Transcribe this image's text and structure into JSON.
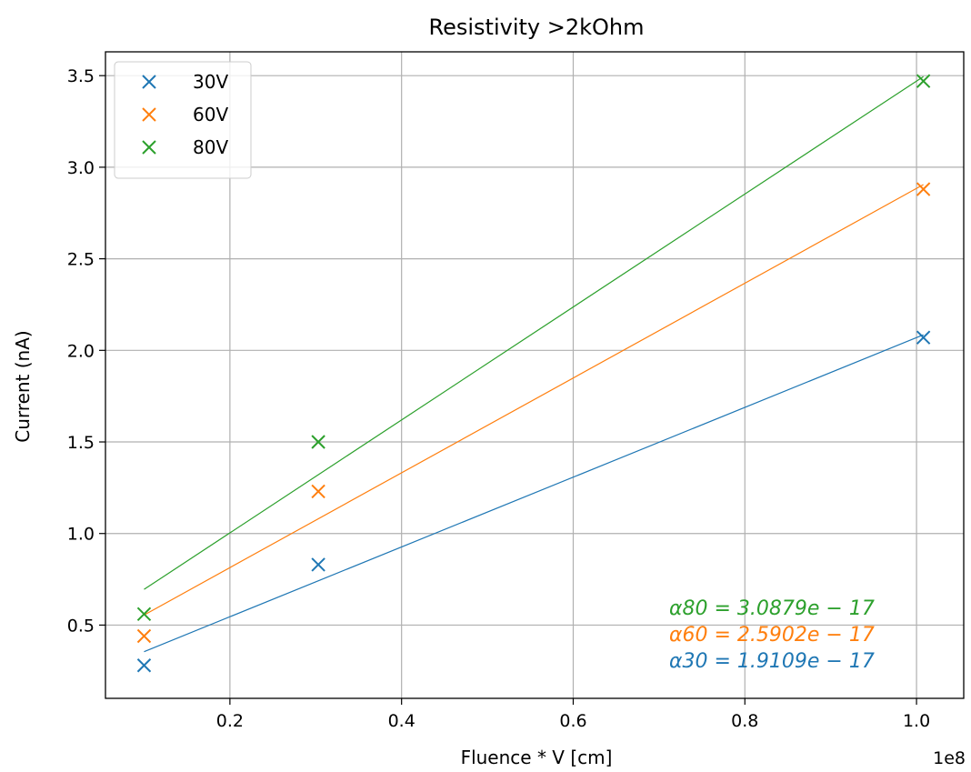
{
  "chart_data": {
    "type": "scatter",
    "title": "Resistivity >2kOhm",
    "xlabel": "Fluence * V [cm]",
    "ylabel": "Current (nA)",
    "x_offset_label": "1e8",
    "x_scale_factor": 100000000,
    "xlim": [
      0.055,
      1.055
    ],
    "ylim": [
      0.1,
      3.63
    ],
    "xticks": [
      0.2,
      0.4,
      0.6,
      0.8,
      1.0
    ],
    "xtick_labels": [
      "0.2",
      "0.4",
      "0.6",
      "0.8",
      "1.0"
    ],
    "yticks": [
      0.5,
      1.0,
      1.5,
      2.0,
      2.5,
      3.0,
      3.5
    ],
    "ytick_labels": [
      "0.5",
      "1.0",
      "1.5",
      "2.0",
      "2.5",
      "3.0",
      "3.5"
    ],
    "grid": true,
    "legend_position": "top-left",
    "series": [
      {
        "name": "30V",
        "color": "#1f77b4",
        "marker": "x",
        "x": [
          0.1,
          0.303,
          1.008
        ],
        "y": [
          0.28,
          0.83,
          2.07
        ],
        "fit": {
          "x": [
            0.1,
            1.008
          ],
          "y": [
            0.355,
            2.085
          ]
        }
      },
      {
        "name": "60V",
        "color": "#ff7f0e",
        "marker": "x",
        "x": [
          0.1,
          0.303,
          1.008
        ],
        "y": [
          0.44,
          1.23,
          2.88
        ],
        "fit": {
          "x": [
            0.1,
            1.008
          ],
          "y": [
            0.555,
            2.905
          ]
        }
      },
      {
        "name": "80V",
        "color": "#2ca02c",
        "marker": "x",
        "x": [
          0.1,
          0.303,
          1.008
        ],
        "y": [
          0.56,
          1.5,
          3.47
        ],
        "fit": {
          "x": [
            0.1,
            1.008
          ],
          "y": [
            0.695,
            3.495
          ]
        }
      }
    ],
    "annotations": [
      {
        "name": "alpha80",
        "color": "#2ca02c",
        "symbol": "α80",
        "rest": " = 3.0879e − 17"
      },
      {
        "name": "alpha60",
        "color": "#ff7f0e",
        "symbol": "α60",
        "rest": " = 2.5902e − 17"
      },
      {
        "name": "alpha30",
        "color": "#1f77b4",
        "symbol": "α30",
        "rest": " = 1.9109e − 17"
      }
    ]
  }
}
